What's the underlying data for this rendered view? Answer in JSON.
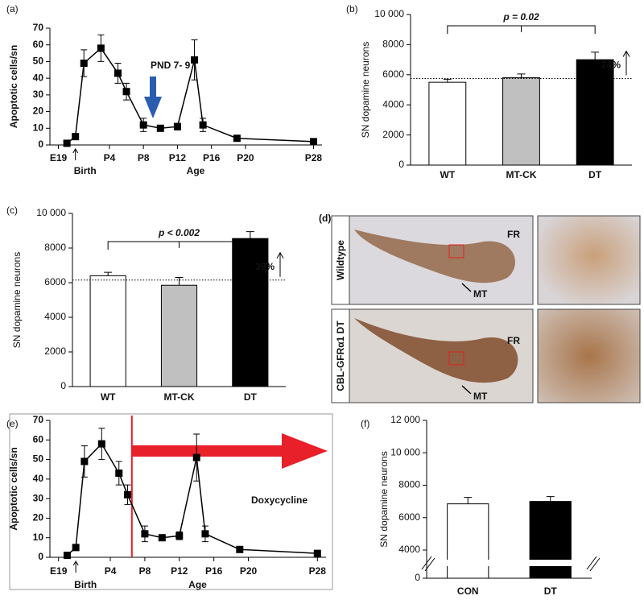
{
  "chart_data": [
    {
      "type": "line",
      "panel": "(a)",
      "ylabel": "Apoptotic cells/sn",
      "x": [
        -1,
        0,
        1,
        3,
        5,
        6,
        8,
        10,
        12,
        14,
        15,
        19,
        28
      ],
      "values": [
        1,
        5,
        49,
        58,
        43,
        32,
        12,
        10,
        11,
        51,
        12,
        4,
        2
      ],
      "errors": [
        0,
        0,
        8,
        8,
        6,
        5,
        4,
        0,
        2,
        12,
        4,
        0,
        0
      ],
      "color": "#000000",
      "xlim": [
        -3,
        29
      ],
      "xticks": [
        {
          "value": -2,
          "label": "E19"
        },
        {
          "value": 4,
          "label": "P4"
        },
        {
          "value": 8,
          "label": "P8"
        },
        {
          "value": 12,
          "label": "P12"
        },
        {
          "value": 16,
          "label": "P16"
        },
        {
          "value": 20,
          "label": "P20"
        },
        {
          "value": 28,
          "label": "P28"
        }
      ],
      "ylim": [
        0,
        70
      ],
      "yticks": [
        0,
        10,
        20,
        30,
        40,
        50,
        60,
        70
      ],
      "birth_label": "Birth",
      "age_label": "Age",
      "annotation": "PND 7- 9"
    },
    {
      "type": "bar",
      "panel": "(b)",
      "ylabel": "SN dopamine neurons",
      "categories": [
        "WT",
        "MT-CK",
        "DT"
      ],
      "values": [
        5500,
        5800,
        7000
      ],
      "errors": [
        200,
        250,
        500
      ],
      "colors": [
        "#ffffff",
        "#c0c0c0",
        "#000000"
      ],
      "ylim": [
        0,
        10000
      ],
      "yticks": [
        0,
        2000,
        4000,
        6000,
        8000,
        {
          "value": 10000,
          "label": "10 000"
        }
      ],
      "p_label": "p = 0.02",
      "ref_line": 5750,
      "ref_label": "24%"
    },
    {
      "type": "bar",
      "panel": "(c)",
      "ylabel": "SN dopamine neurons",
      "categories": [
        "WT",
        "MT-CK",
        "DT"
      ],
      "values": [
        6400,
        5850,
        8550
      ],
      "errors": [
        200,
        450,
        400
      ],
      "colors": [
        "#ffffff",
        "#c0c0c0",
        "#000000"
      ],
      "ylim": [
        0,
        10000
      ],
      "yticks": [
        0,
        2000,
        4000,
        6000,
        8000,
        {
          "value": 10000,
          "label": "10 000"
        }
      ],
      "p_label": "p < 0.002",
      "ref_line": 6150,
      "ref_label": "39%"
    },
    {
      "type": "line",
      "panel": "(e)",
      "ylabel": "Apoptotic cells/sn",
      "x": [
        -1,
        0,
        1,
        3,
        5,
        6,
        8,
        10,
        12,
        14,
        15,
        19,
        28
      ],
      "values": [
        1,
        5,
        49,
        58,
        43,
        32,
        12,
        10,
        11,
        51,
        12,
        4,
        2
      ],
      "errors": [
        0,
        0,
        8,
        8,
        6,
        5,
        4,
        0,
        2,
        12,
        4,
        0,
        0
      ],
      "color": "#000000",
      "xlim": [
        -3,
        29
      ],
      "xticks": [
        {
          "value": -2,
          "label": "E19"
        },
        {
          "value": 4,
          "label": "P4"
        },
        {
          "value": 8,
          "label": "P8"
        },
        {
          "value": 12,
          "label": "P12"
        },
        {
          "value": 16,
          "label": "P16"
        },
        {
          "value": 20,
          "label": "P20"
        },
        {
          "value": 28,
          "label": "P28"
        }
      ],
      "ylim": [
        0,
        70
      ],
      "yticks": [
        0,
        10,
        20,
        30,
        40,
        50,
        60,
        70
      ],
      "birth_label": "Birth",
      "age_label": "Age",
      "treatment_start": 6.5,
      "treatment_label": "Doxycycline",
      "treatment_color": "#e8202a"
    },
    {
      "type": "bar",
      "panel": "(f)",
      "ylabel": "SN dopamine neurons",
      "categories": [
        "CON",
        "DT"
      ],
      "values": [
        6850,
        7000
      ],
      "errors": [
        400,
        300
      ],
      "colors": [
        "#ffffff",
        "#000000"
      ],
      "ylim": [
        0,
        12000
      ],
      "ybreak": [
        0,
        4000
      ],
      "yticks": [
        0,
        4000,
        6000,
        8000,
        {
          "value": 10000,
          "label": "10 000"
        },
        {
          "value": 12000,
          "label": "12 000"
        }
      ]
    }
  ],
  "panel_d": {
    "panel": "(d)",
    "rows": [
      {
        "label": "Wildtype"
      },
      {
        "label": "CBL-GFRα1 DT"
      }
    ],
    "region_labels": [
      "FR",
      "MT"
    ]
  }
}
